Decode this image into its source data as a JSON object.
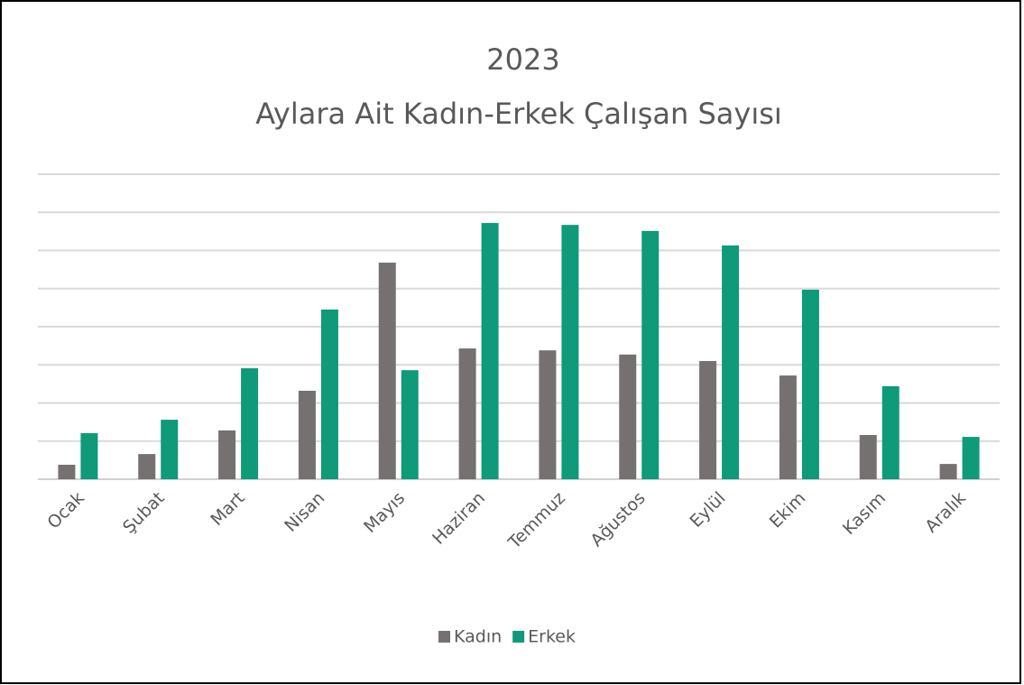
{
  "chart_data": {
    "type": "bar",
    "title": "2023",
    "subtitle": "Aylara Ait Kadın-Erkek Çalışan Sayısı",
    "categories": [
      "Ocak",
      "Şubat",
      "Mart",
      "Nisan",
      "Mayıs",
      "Haziran",
      "Temmuz",
      "Ağustos",
      "Eylül",
      "Ekim",
      "Kasım",
      "Aralık"
    ],
    "series": [
      {
        "name": "Kadın",
        "color": "#767171",
        "values": [
          0.38,
          0.66,
          1.28,
          2.32,
          5.68,
          3.43,
          3.38,
          3.27,
          3.1,
          2.72,
          1.16,
          0.4
        ]
      },
      {
        "name": "Erkek",
        "color": "#0f9a7a",
        "values": [
          1.21,
          1.56,
          2.91,
          4.45,
          2.86,
          6.72,
          6.67,
          6.51,
          6.13,
          4.97,
          2.44,
          1.11
        ]
      }
    ],
    "ylim": [
      0,
      8
    ],
    "yticks": [
      0,
      1,
      2,
      3,
      4,
      5,
      6,
      7,
      8
    ],
    "grid": true,
    "tick_labels": false,
    "legend": "bottom"
  }
}
